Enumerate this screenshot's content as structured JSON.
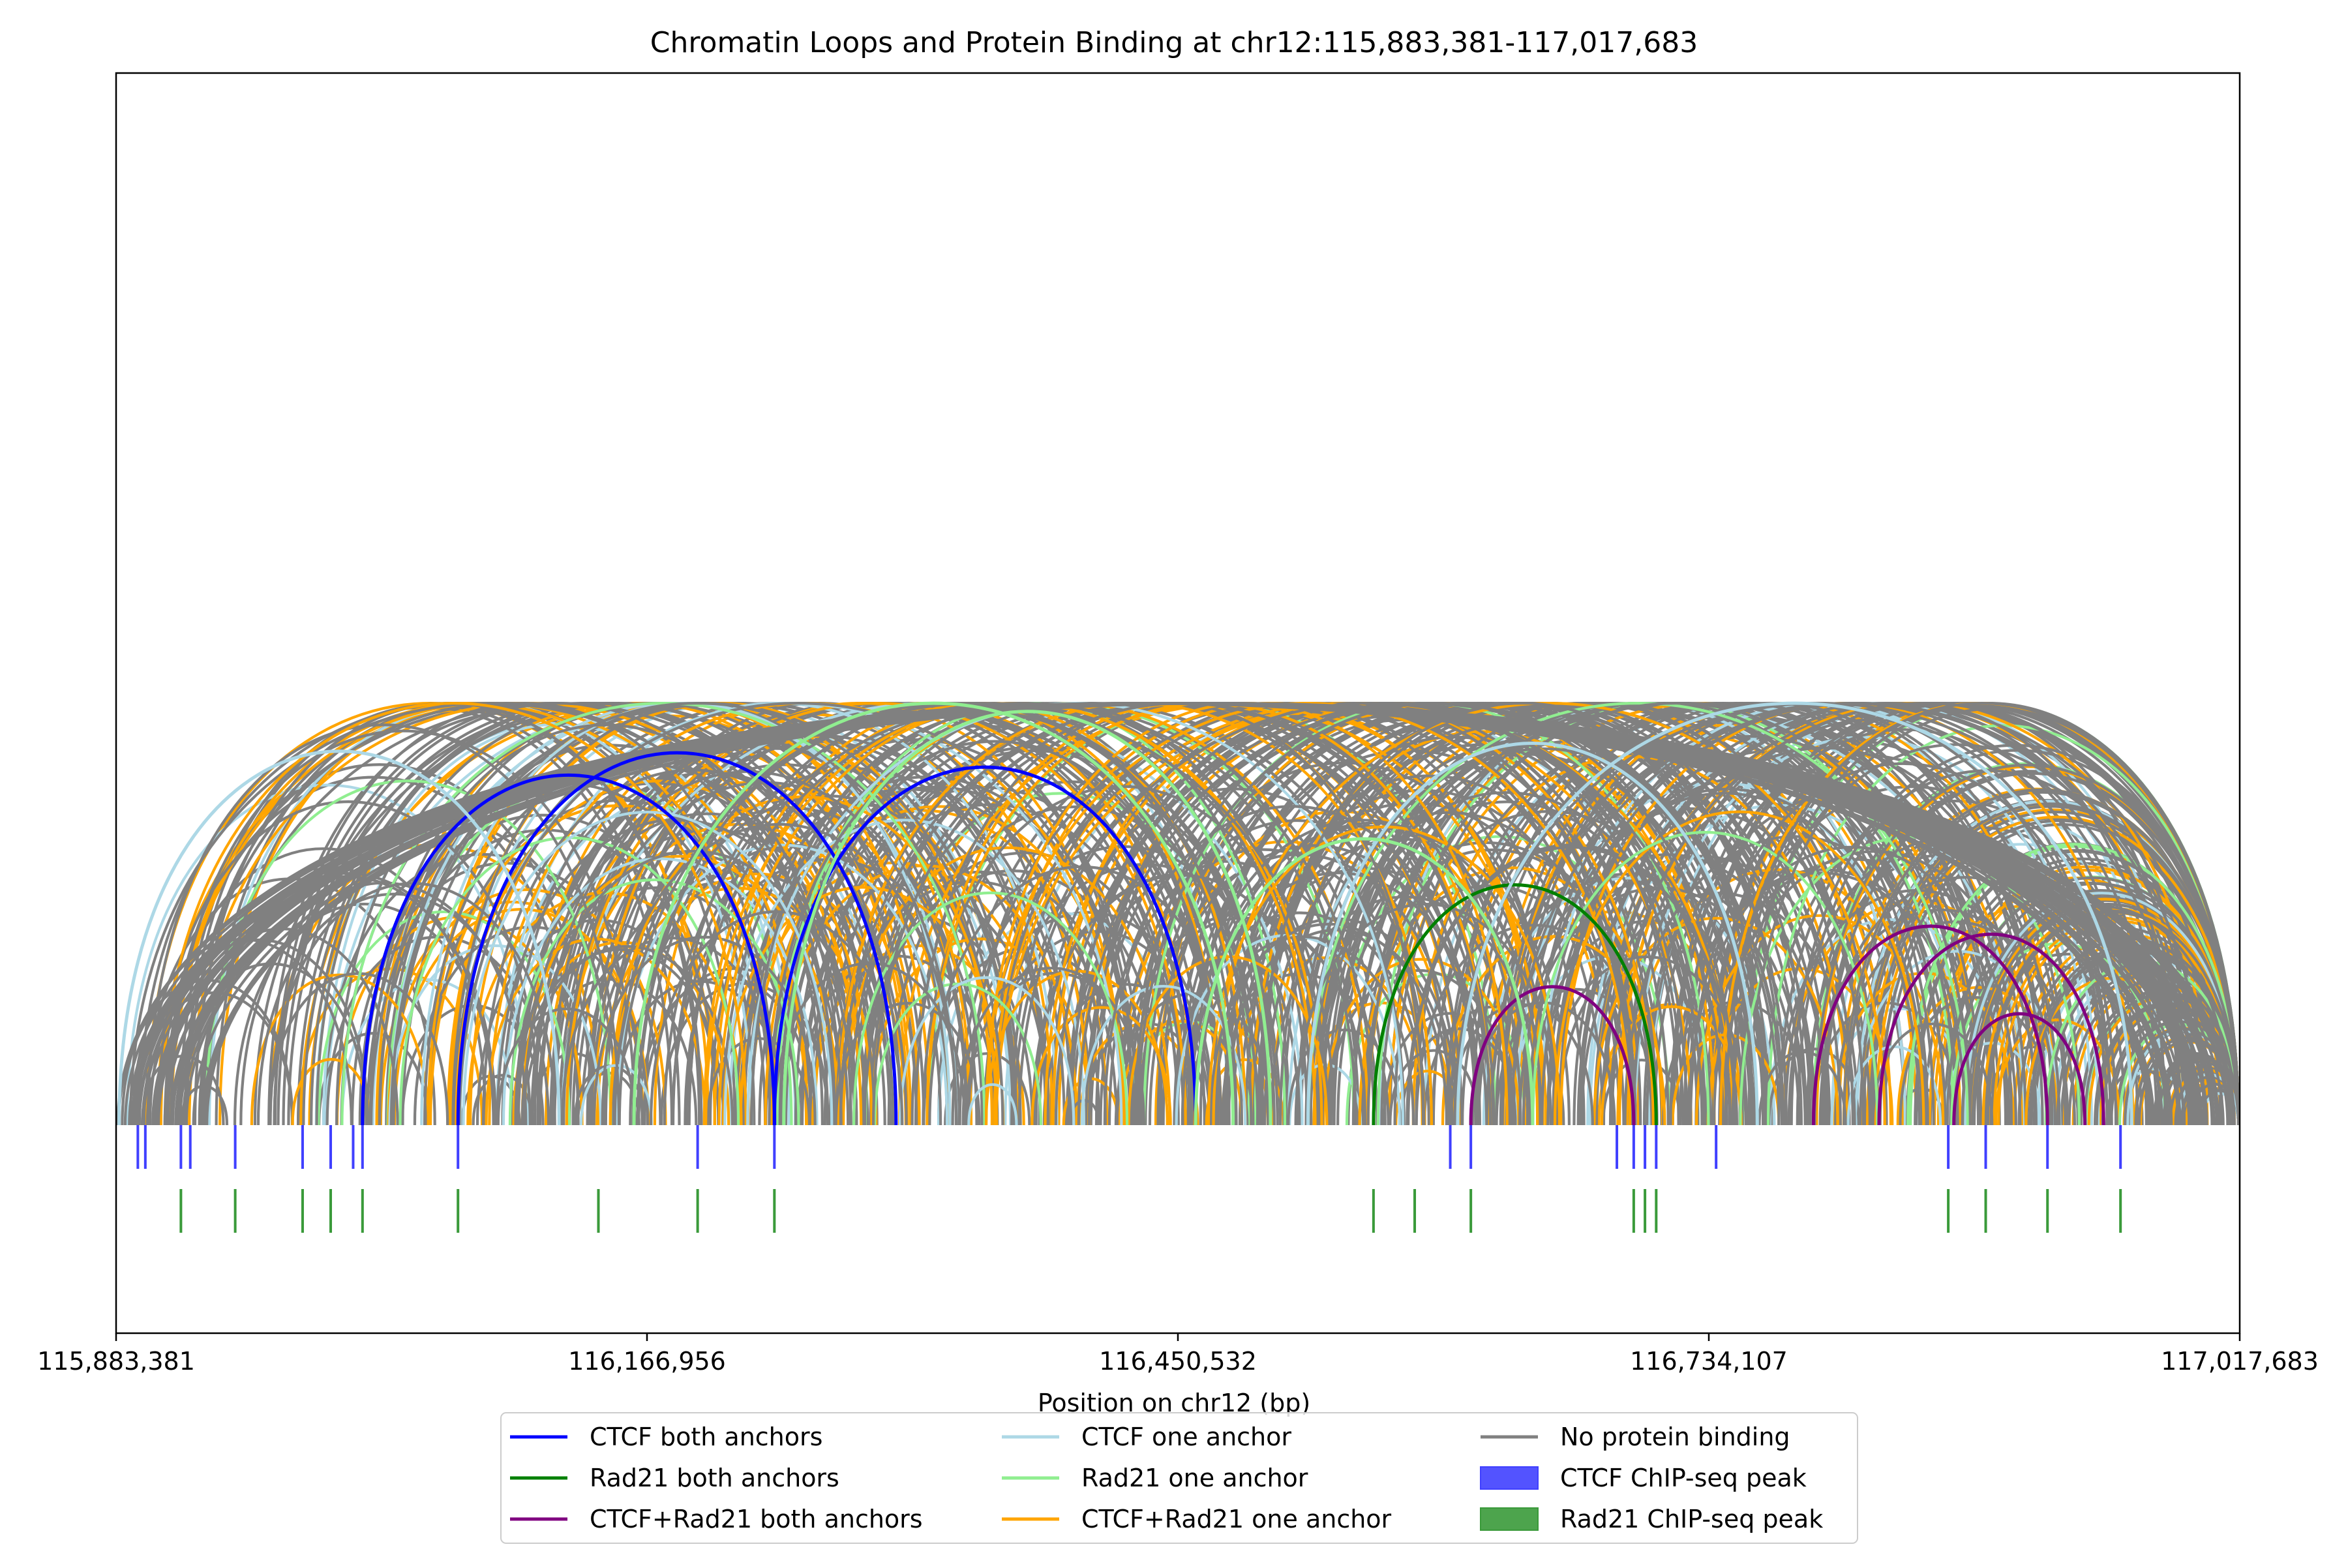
{
  "chart_data": {
    "type": "arc",
    "title": "Chromatin Loops and Protein Binding at chr12:115,883,381-117,017,683",
    "xlabel": "Position on chr12 (bp)",
    "ylabel": "",
    "xlim": [
      115883381,
      117017683
    ],
    "xticks": [
      115883381,
      116166956,
      116450532,
      116734107,
      117017683
    ],
    "xtick_labels": [
      "115,883,381",
      "116,166,956",
      "116,450,532",
      "116,734,107",
      "117,017,683"
    ],
    "grid": false,
    "legend_position": "bottom-center",
    "colors": {
      "ctcf_both": "#0000ff",
      "rad21_both": "#008000",
      "ctcf_rad21_both": "#800080",
      "ctcf_one": "#add8e6",
      "rad21_one": "#90ee90",
      "ctcf_rad21_one": "#ffa500",
      "none": "#808080",
      "ctcf_peak": "#4040ff",
      "rad21_peak": "#3a9a3a"
    },
    "legend": [
      {
        "label": "CTCF both anchors",
        "color": "#0000ff",
        "kind": "line"
      },
      {
        "label": "Rad21 both anchors",
        "color": "#008000",
        "kind": "line"
      },
      {
        "label": "CTCF+Rad21 both anchors",
        "color": "#800080",
        "kind": "line"
      },
      {
        "label": "CTCF one anchor",
        "color": "#add8e6",
        "kind": "line"
      },
      {
        "label": "Rad21 one anchor",
        "color": "#90ee90",
        "kind": "line"
      },
      {
        "label": "CTCF+Rad21 one anchor",
        "color": "#ffa500",
        "kind": "line"
      },
      {
        "label": "No protein binding",
        "color": "#808080",
        "kind": "line"
      },
      {
        "label": "CTCF ChIP-seq peak",
        "color": "#4040ff",
        "kind": "patch"
      },
      {
        "label": "Rad21 ChIP-seq peak",
        "color": "#3a9a3a",
        "kind": "patch"
      }
    ],
    "ctcf_peaks": [
      115895000,
      115899000,
      115918000,
      115923000,
      115947000,
      115983000,
      115998000,
      116010000,
      116015000,
      116066000,
      116194000,
      116235000,
      116596000,
      116607000,
      116685000,
      116694000,
      116700000,
      116706000,
      116738000,
      116862000,
      116882000,
      116915000,
      116954000
    ],
    "rad21_peaks": [
      115918000,
      115947000,
      115983000,
      115998000,
      116015000,
      116066000,
      116141000,
      116194000,
      116235000,
      116555000,
      116577000,
      116607000,
      116694000,
      116700000,
      116706000,
      116862000,
      116882000,
      116915000,
      116954000
    ],
    "highlighted_loops": [
      {
        "class": "rad21_both",
        "start": 116555000,
        "end": 116706000
      },
      {
        "class": "ctcf_rad21_both",
        "start": 116607000,
        "end": 116694000
      },
      {
        "class": "ctcf_rad21_both",
        "start": 116790000,
        "end": 116915000
      },
      {
        "class": "ctcf_rad21_both",
        "start": 116825000,
        "end": 116945000
      },
      {
        "class": "ctcf_rad21_both",
        "start": 116865000,
        "end": 116935000
      },
      {
        "class": "ctcf_both",
        "start": 116066000,
        "end": 116300000
      },
      {
        "class": "ctcf_both",
        "start": 116015000,
        "end": 116235000
      },
      {
        "class": "ctcf_both",
        "start": 116235000,
        "end": 116460000
      },
      {
        "class": "ctcf_one",
        "start": 115885000,
        "end": 116120000
      },
      {
        "class": "ctcf_one",
        "start": 116600000,
        "end": 116960000
      },
      {
        "class": "ctcf_one",
        "start": 116520000,
        "end": 116760000
      },
      {
        "class": "rad21_one",
        "start": 116160000,
        "end": 116480000
      },
      {
        "class": "rad21_one",
        "start": 116240000,
        "end": 116500000
      },
      {
        "class": "rad21_one",
        "start": 116460000,
        "end": 116640000
      }
    ],
    "max_arc_height_fraction": 0.333
  }
}
